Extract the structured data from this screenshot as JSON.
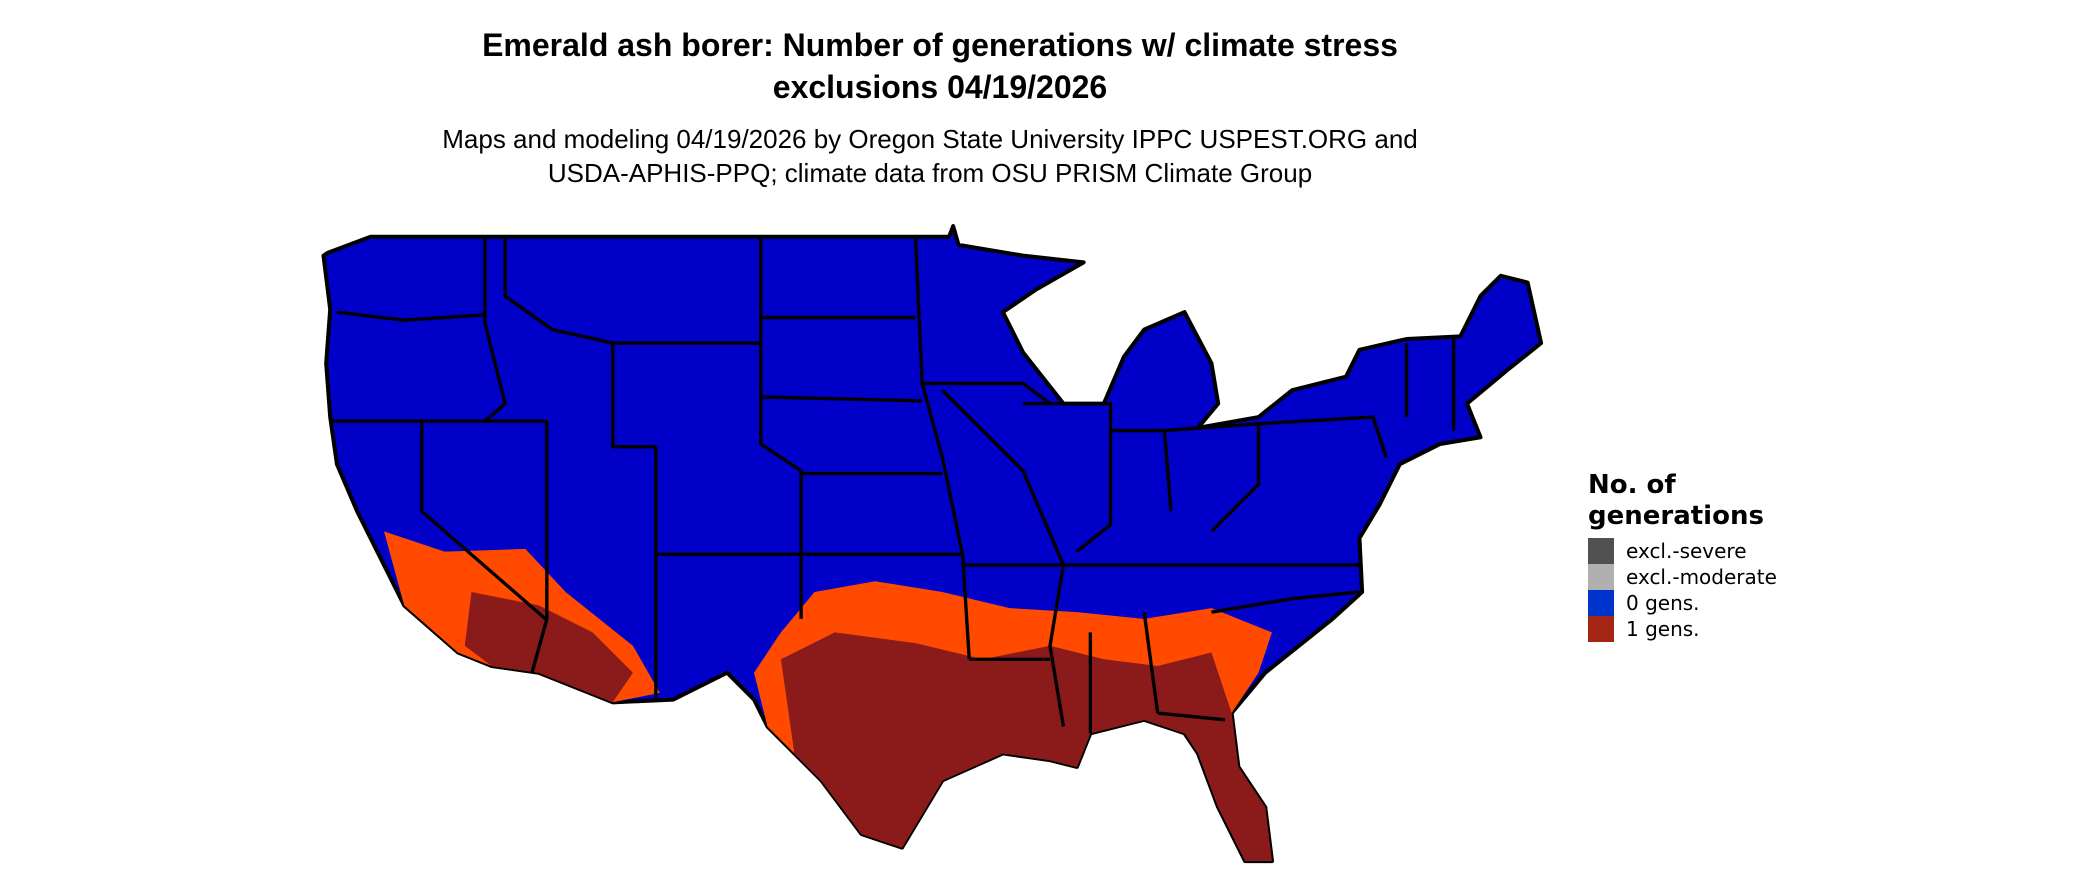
{
  "title_line1": "Emerald ash borer: Number of generations w/ climate stress",
  "title_line2": "exclusions 04/19/2026",
  "subtitle_line1": "Maps and modeling 04/19/2026 by Oregon State University IPPC USPEST.ORG and",
  "subtitle_line2": "USDA-APHIS-PPQ; climate data from OSU PRISM Climate Group",
  "legend": {
    "title_line1": "No. of",
    "title_line2": "generations",
    "items": [
      {
        "label": "excl.-severe",
        "color": "#505050"
      },
      {
        "label": "excl.-moderate",
        "color": "#b0b0b0"
      },
      {
        "label": "0 gens.",
        "color": "#0033cc"
      },
      {
        "label": "1 gens.",
        "color": "#a52515"
      }
    ]
  },
  "colors": {
    "zero_gens_map": "#0000c8",
    "one_gen_light": "#ff4a00",
    "one_gen_mid": "#c83a10",
    "one_gen_dark": "#8b1a1a",
    "borders": "#000000"
  }
}
